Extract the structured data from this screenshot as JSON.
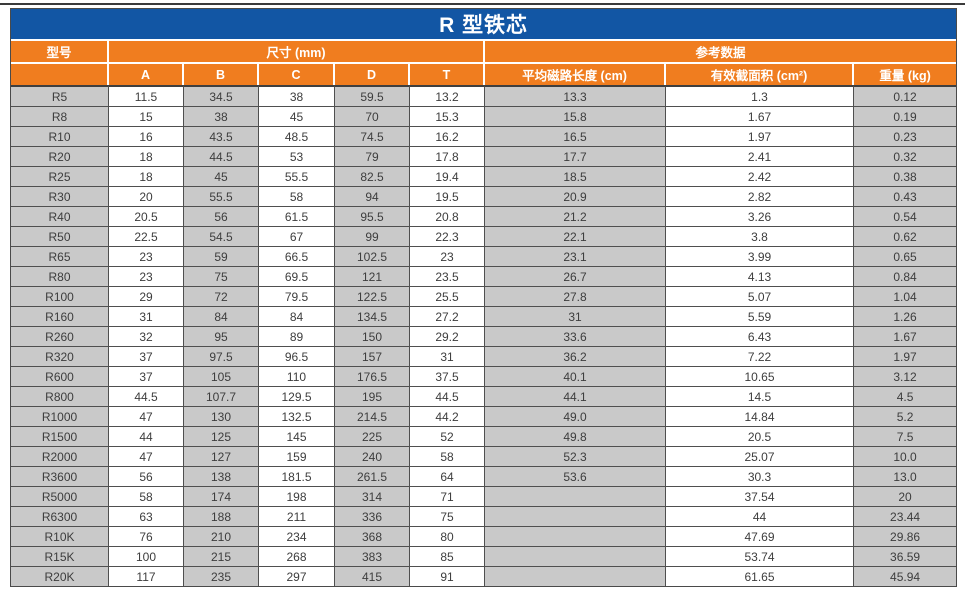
{
  "page": {
    "title": "R 型铁芯"
  },
  "table": {
    "group_header": {
      "model": "型号",
      "dimensions": "尺寸 (mm)",
      "reference": "参考数据"
    },
    "columns": [
      "A",
      "B",
      "C",
      "D",
      "T",
      "平均磁路长度 (cm)",
      "有效截面积 (cm²)",
      "重量 (kg)"
    ],
    "rows": [
      [
        "R5",
        "11.5",
        "34.5",
        "38",
        "59.5",
        "13.2",
        "13.3",
        "1.3",
        "0.12"
      ],
      [
        "R8",
        "15",
        "38",
        "45",
        "70",
        "15.3",
        "15.8",
        "1.67",
        "0.19"
      ],
      [
        "R10",
        "16",
        "43.5",
        "48.5",
        "74.5",
        "16.2",
        "16.5",
        "1.97",
        "0.23"
      ],
      [
        "R20",
        "18",
        "44.5",
        "53",
        "79",
        "17.8",
        "17.7",
        "2.41",
        "0.32"
      ],
      [
        "R25",
        "18",
        "45",
        "55.5",
        "82.5",
        "19.4",
        "18.5",
        "2.42",
        "0.38"
      ],
      [
        "R30",
        "20",
        "55.5",
        "58",
        "94",
        "19.5",
        "20.9",
        "2.82",
        "0.43"
      ],
      [
        "R40",
        "20.5",
        "56",
        "61.5",
        "95.5",
        "20.8",
        "21.2",
        "3.26",
        "0.54"
      ],
      [
        "R50",
        "22.5",
        "54.5",
        "67",
        "99",
        "22.3",
        "22.1",
        "3.8",
        "0.62"
      ],
      [
        "R65",
        "23",
        "59",
        "66.5",
        "102.5",
        "23",
        "23.1",
        "3.99",
        "0.65"
      ],
      [
        "R80",
        "23",
        "75",
        "69.5",
        "121",
        "23.5",
        "26.7",
        "4.13",
        "0.84"
      ],
      [
        "R100",
        "29",
        "72",
        "79.5",
        "122.5",
        "25.5",
        "27.8",
        "5.07",
        "1.04"
      ],
      [
        "R160",
        "31",
        "84",
        "84",
        "134.5",
        "27.2",
        "31",
        "5.59",
        "1.26"
      ],
      [
        "R260",
        "32",
        "95",
        "89",
        "150",
        "29.2",
        "33.6",
        "6.43",
        "1.67"
      ],
      [
        "R320",
        "37",
        "97.5",
        "96.5",
        "157",
        "31",
        "36.2",
        "7.22",
        "1.97"
      ],
      [
        "R600",
        "37",
        "105",
        "110",
        "176.5",
        "37.5",
        "40.1",
        "10.65",
        "3.12"
      ],
      [
        "R800",
        "44.5",
        "107.7",
        "129.5",
        "195",
        "44.5",
        "44.1",
        "14.5",
        "4.5"
      ],
      [
        "R1000",
        "47",
        "130",
        "132.5",
        "214.5",
        "44.2",
        "49.0",
        "14.84",
        "5.2"
      ],
      [
        "R1500",
        "44",
        "125",
        "145",
        "225",
        "52",
        "49.8",
        "20.5",
        "7.5"
      ],
      [
        "R2000",
        "47",
        "127",
        "159",
        "240",
        "58",
        "52.3",
        "25.07",
        "10.0"
      ],
      [
        "R3600",
        "56",
        "138",
        "181.5",
        "261.5",
        "64",
        "53.6",
        "30.3",
        "13.0"
      ],
      [
        "R5000",
        "58",
        "174",
        "198",
        "314",
        "71",
        "",
        "37.54",
        "20"
      ],
      [
        "R6300",
        "63",
        "188",
        "211",
        "336",
        "75",
        "",
        "44",
        "23.44"
      ],
      [
        "R10K",
        "76",
        "210",
        "234",
        "368",
        "80",
        "",
        "47.69",
        "29.86"
      ],
      [
        "R15K",
        "100",
        "215",
        "268",
        "383",
        "85",
        "",
        "53.74",
        "36.59"
      ],
      [
        "R20K",
        "117",
        "235",
        "297",
        "415",
        "91",
        "",
        "61.65",
        "45.94"
      ]
    ]
  },
  "colors": {
    "title_blue": "#1256a4",
    "header_orange": "#f07d1f",
    "cell_gray": "#c9c9c9",
    "border_dark": "#4f4f4f"
  }
}
